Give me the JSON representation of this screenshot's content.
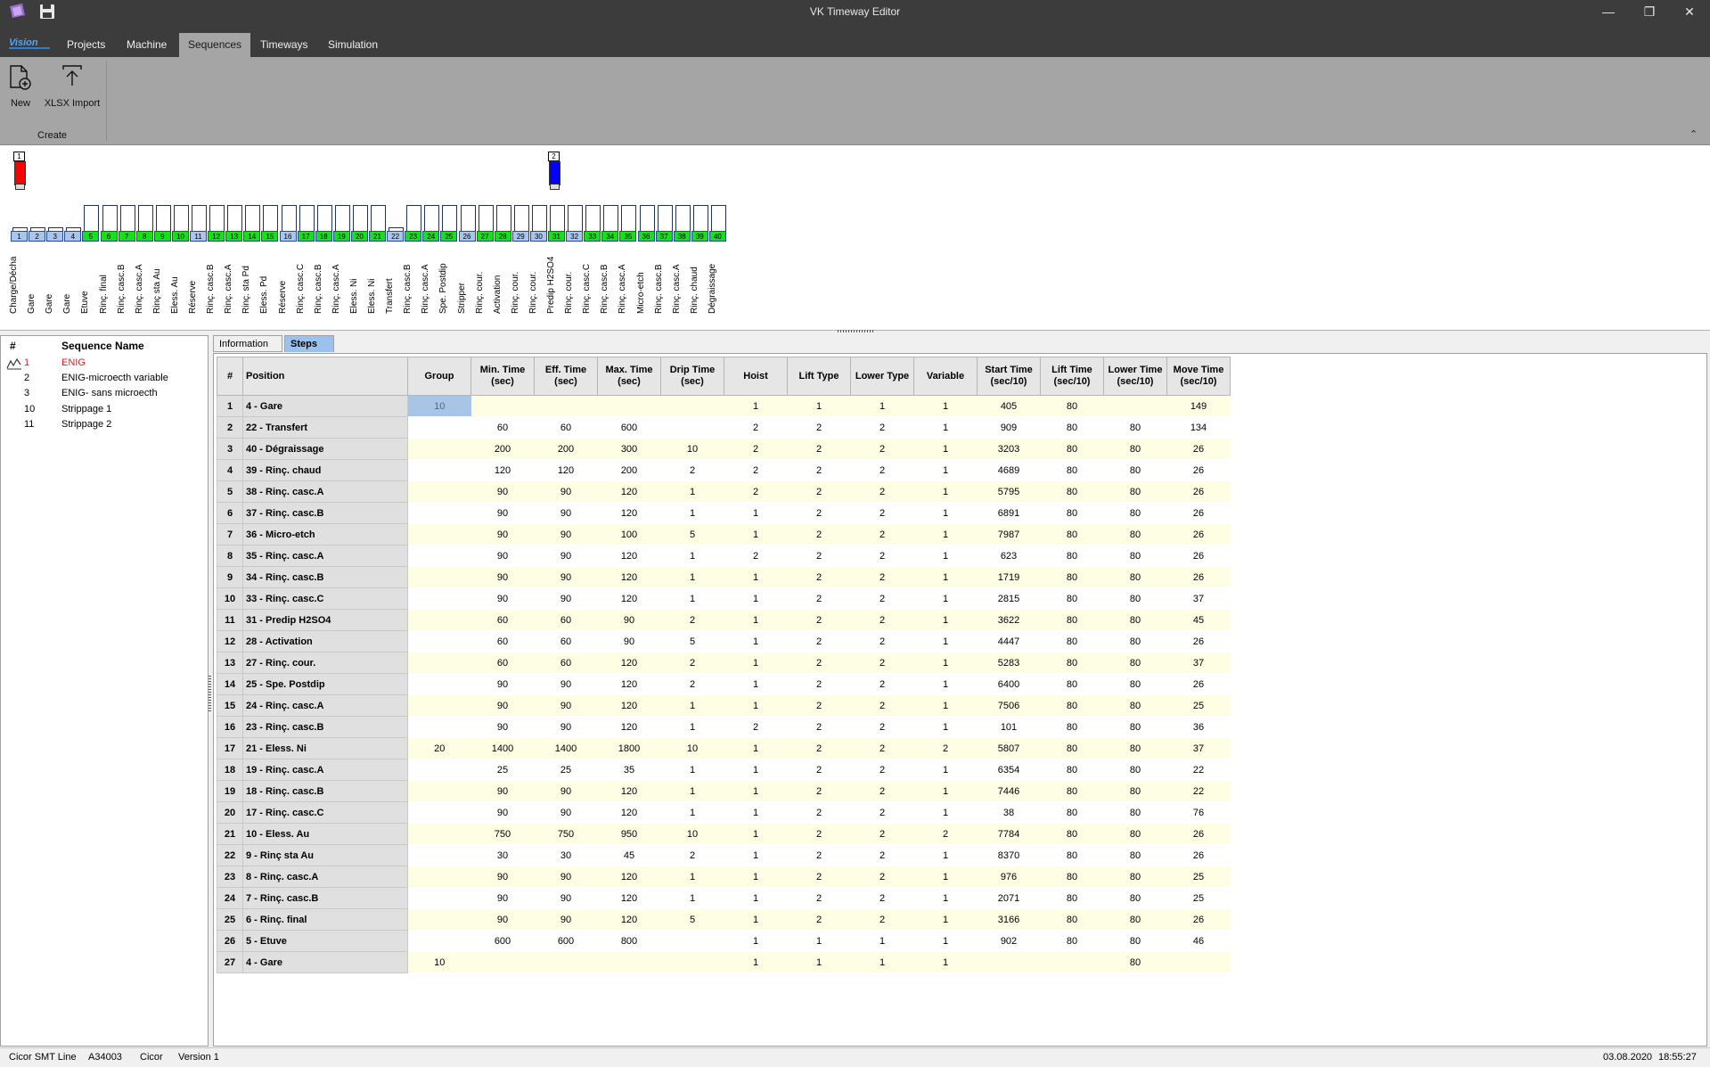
{
  "window": {
    "title": "VK Timeway Editor"
  },
  "menu": {
    "items": [
      "Projects",
      "Machine",
      "Sequences",
      "Timeways",
      "Simulation"
    ],
    "active": "Sequences"
  },
  "ribbon": {
    "new_label": "New",
    "import_label": "XLSX Import",
    "group_label": "Create"
  },
  "hoists": [
    {
      "num": "1",
      "color": "#ff0000"
    },
    {
      "num": "2",
      "color": "#0000ff"
    }
  ],
  "tanks": [
    {
      "num": "1",
      "name": "Charge/Décha",
      "color": "blue",
      "level": "low"
    },
    {
      "num": "2",
      "name": "Gare",
      "color": "blue",
      "level": "low"
    },
    {
      "num": "3",
      "name": "Gare",
      "color": "blue",
      "level": "low"
    },
    {
      "num": "4",
      "name": "Gare",
      "color": "blue",
      "level": "low"
    },
    {
      "num": "5",
      "name": "Etuve",
      "color": "green",
      "level": "high"
    },
    {
      "num": "6",
      "name": "Rinç. final",
      "color": "green",
      "level": "high"
    },
    {
      "num": "7",
      "name": "Rinç. casc.B",
      "color": "green",
      "level": "high"
    },
    {
      "num": "8",
      "name": "Rinç. casc.A",
      "color": "green",
      "level": "high"
    },
    {
      "num": "9",
      "name": "Rinç sta Au",
      "color": "green",
      "level": "high"
    },
    {
      "num": "10",
      "name": "Eless. Au",
      "color": "green",
      "level": "high"
    },
    {
      "num": "11",
      "name": "Réserve",
      "color": "blue",
      "level": "high"
    },
    {
      "num": "12",
      "name": "Rinç. casc.B",
      "color": "green",
      "level": "high"
    },
    {
      "num": "13",
      "name": "Rinç. casc.A",
      "color": "green",
      "level": "high"
    },
    {
      "num": "14",
      "name": "Rinç. sta Pd",
      "color": "green",
      "level": "high"
    },
    {
      "num": "15",
      "name": "Eless. Pd",
      "color": "green",
      "level": "high"
    },
    {
      "num": "16",
      "name": "Réserve",
      "color": "blue",
      "level": "high"
    },
    {
      "num": "17",
      "name": "Rinç. casc.C",
      "color": "green",
      "level": "high"
    },
    {
      "num": "18",
      "name": "Rinç. casc.B",
      "color": "green",
      "level": "high"
    },
    {
      "num": "19",
      "name": "Rinç. casc.A",
      "color": "green",
      "level": "high"
    },
    {
      "num": "20",
      "name": "Eless. Ni",
      "color": "green",
      "level": "high"
    },
    {
      "num": "21",
      "name": "Eless. Ni",
      "color": "green",
      "level": "high"
    },
    {
      "num": "22",
      "name": "Transfert",
      "color": "blue",
      "level": "low"
    },
    {
      "num": "23",
      "name": "Rinç. casc.B",
      "color": "green",
      "level": "high"
    },
    {
      "num": "24",
      "name": "Rinç. casc.A",
      "color": "green",
      "level": "high"
    },
    {
      "num": "25",
      "name": "Spe. Postdip",
      "color": "green",
      "level": "high"
    },
    {
      "num": "26",
      "name": "Stripper",
      "color": "blue",
      "level": "high"
    },
    {
      "num": "27",
      "name": "Rinç. cour.",
      "color": "green",
      "level": "high"
    },
    {
      "num": "28",
      "name": "Activation",
      "color": "green",
      "level": "high"
    },
    {
      "num": "29",
      "name": "Rinç. cour.",
      "color": "blue",
      "level": "high"
    },
    {
      "num": "30",
      "name": "Rinç. cour.",
      "color": "blue",
      "level": "high"
    },
    {
      "num": "31",
      "name": "Predip H2SO4",
      "color": "green",
      "level": "high"
    },
    {
      "num": "32",
      "name": "Rinç. cour.",
      "color": "blue",
      "level": "high"
    },
    {
      "num": "33",
      "name": "Rinç. casc.C",
      "color": "green",
      "level": "high"
    },
    {
      "num": "34",
      "name": "Rinç. casc.B",
      "color": "green",
      "level": "high"
    },
    {
      "num": "35",
      "name": "Rinç. casc.A",
      "color": "green",
      "level": "high"
    },
    {
      "num": "36",
      "name": "Micro-etch",
      "color": "green",
      "level": "high"
    },
    {
      "num": "37",
      "name": "Rinç. casc.B",
      "color": "green",
      "level": "high"
    },
    {
      "num": "38",
      "name": "Rinç. casc.A",
      "color": "green",
      "level": "high"
    },
    {
      "num": "39",
      "name": "Rinç. chaud",
      "color": "green",
      "level": "high"
    },
    {
      "num": "40",
      "name": "Dégraissage",
      "color": "green",
      "level": "high"
    }
  ],
  "sequences": {
    "headers": [
      "#",
      "Sequence Name"
    ],
    "rows": [
      {
        "num": "1",
        "name": "ENIG",
        "selected": true
      },
      {
        "num": "2",
        "name": "ENIG-microecth variable"
      },
      {
        "num": "3",
        "name": "ENIG- sans microecth"
      },
      {
        "num": "10",
        "name": "Strippage 1"
      },
      {
        "num": "11",
        "name": "Strippage 2"
      }
    ]
  },
  "tabs": [
    "Information",
    "Steps"
  ],
  "active_tab": "Steps",
  "steps": {
    "headers": [
      "#",
      "Position",
      "Group",
      "Min. Time\n(sec)",
      "Eff. Time\n(sec)",
      "Max. Time\n(sec)",
      "Drip Time\n(sec)",
      "Hoist",
      "Lift Type",
      "Lower Type",
      "Variable",
      "Start Time\n(sec/10)",
      "Lift Time\n(sec/10)",
      "Lower Time\n(sec/10)",
      "Move Time\n(sec/10)"
    ],
    "rows": [
      [
        "1",
        "4 - Gare",
        "10",
        "",
        "",
        "",
        "",
        "1",
        "1",
        "1",
        "1",
        "405",
        "80",
        "",
        "149"
      ],
      [
        "2",
        "22 - Transfert",
        "",
        "60",
        "60",
        "600",
        "",
        "2",
        "2",
        "2",
        "1",
        "909",
        "80",
        "80",
        "134"
      ],
      [
        "3",
        "40 - Dégraissage",
        "",
        "200",
        "200",
        "300",
        "10",
        "2",
        "2",
        "2",
        "1",
        "3203",
        "80",
        "80",
        "26"
      ],
      [
        "4",
        "39 - Rinç. chaud",
        "",
        "120",
        "120",
        "200",
        "2",
        "2",
        "2",
        "2",
        "1",
        "4689",
        "80",
        "80",
        "26"
      ],
      [
        "5",
        "38 - Rinç. casc.A",
        "",
        "90",
        "90",
        "120",
        "1",
        "2",
        "2",
        "2",
        "1",
        "5795",
        "80",
        "80",
        "26"
      ],
      [
        "6",
        "37 - Rinç. casc.B",
        "",
        "90",
        "90",
        "120",
        "1",
        "1",
        "2",
        "2",
        "1",
        "6891",
        "80",
        "80",
        "26"
      ],
      [
        "7",
        "36 - Micro-etch",
        "",
        "90",
        "90",
        "100",
        "5",
        "1",
        "2",
        "2",
        "1",
        "7987",
        "80",
        "80",
        "26"
      ],
      [
        "8",
        "35 - Rinç. casc.A",
        "",
        "90",
        "90",
        "120",
        "1",
        "2",
        "2",
        "2",
        "1",
        "623",
        "80",
        "80",
        "26"
      ],
      [
        "9",
        "34 - Rinç. casc.B",
        "",
        "90",
        "90",
        "120",
        "1",
        "1",
        "2",
        "2",
        "1",
        "1719",
        "80",
        "80",
        "26"
      ],
      [
        "10",
        "33 - Rinç. casc.C",
        "",
        "90",
        "90",
        "120",
        "1",
        "1",
        "2",
        "2",
        "1",
        "2815",
        "80",
        "80",
        "37"
      ],
      [
        "11",
        "31 - Predip H2SO4",
        "",
        "60",
        "60",
        "90",
        "2",
        "1",
        "2",
        "2",
        "1",
        "3622",
        "80",
        "80",
        "45"
      ],
      [
        "12",
        "28 - Activation",
        "",
        "60",
        "60",
        "90",
        "5",
        "1",
        "2",
        "2",
        "1",
        "4447",
        "80",
        "80",
        "26"
      ],
      [
        "13",
        "27 - Rinç. cour.",
        "",
        "60",
        "60",
        "120",
        "2",
        "1",
        "2",
        "2",
        "1",
        "5283",
        "80",
        "80",
        "37"
      ],
      [
        "14",
        "25 - Spe. Postdip",
        "",
        "90",
        "90",
        "120",
        "2",
        "1",
        "2",
        "2",
        "1",
        "6400",
        "80",
        "80",
        "26"
      ],
      [
        "15",
        "24 - Rinç. casc.A",
        "",
        "90",
        "90",
        "120",
        "1",
        "1",
        "2",
        "2",
        "1",
        "7506",
        "80",
        "80",
        "25"
      ],
      [
        "16",
        "23 - Rinç. casc.B",
        "",
        "90",
        "90",
        "120",
        "1",
        "2",
        "2",
        "2",
        "1",
        "101",
        "80",
        "80",
        "36"
      ],
      [
        "17",
        "21 - Eless. Ni",
        "20",
        "1400",
        "1400",
        "1800",
        "10",
        "1",
        "2",
        "2",
        "2",
        "5807",
        "80",
        "80",
        "37"
      ],
      [
        "18",
        "19 - Rinç. casc.A",
        "",
        "25",
        "25",
        "35",
        "1",
        "1",
        "2",
        "2",
        "1",
        "6354",
        "80",
        "80",
        "22"
      ],
      [
        "19",
        "18 - Rinç. casc.B",
        "",
        "90",
        "90",
        "120",
        "1",
        "1",
        "2",
        "2",
        "1",
        "7446",
        "80",
        "80",
        "22"
      ],
      [
        "20",
        "17 - Rinç. casc.C",
        "",
        "90",
        "90",
        "120",
        "1",
        "1",
        "2",
        "2",
        "1",
        "38",
        "80",
        "80",
        "76"
      ],
      [
        "21",
        "10 - Eless. Au",
        "",
        "750",
        "750",
        "950",
        "10",
        "1",
        "2",
        "2",
        "2",
        "7784",
        "80",
        "80",
        "26"
      ],
      [
        "22",
        "9 - Rinç sta Au",
        "",
        "30",
        "30",
        "45",
        "2",
        "1",
        "2",
        "2",
        "1",
        "8370",
        "80",
        "80",
        "26"
      ],
      [
        "23",
        "8 - Rinç. casc.A",
        "",
        "90",
        "90",
        "120",
        "1",
        "1",
        "2",
        "2",
        "1",
        "976",
        "80",
        "80",
        "25"
      ],
      [
        "24",
        "7 - Rinç. casc.B",
        "",
        "90",
        "90",
        "120",
        "1",
        "1",
        "2",
        "2",
        "1",
        "2071",
        "80",
        "80",
        "25"
      ],
      [
        "25",
        "6 - Rinç. final",
        "",
        "90",
        "90",
        "120",
        "5",
        "1",
        "2",
        "2",
        "1",
        "3166",
        "80",
        "80",
        "26"
      ],
      [
        "26",
        "5 - Etuve",
        "",
        "600",
        "600",
        "800",
        "",
        "1",
        "1",
        "1",
        "1",
        "902",
        "80",
        "80",
        "46"
      ],
      [
        "27",
        "4 - Gare",
        "10",
        "",
        "",
        "",
        "",
        "1",
        "1",
        "1",
        "1",
        "",
        "",
        "80",
        ""
      ]
    ]
  },
  "status": {
    "line": "Cicor SMT Line",
    "code": "A34003",
    "company": "Cicor",
    "version": "Version 1",
    "date": "03.08.2020",
    "time": "18:55:27"
  },
  "colors": {
    "titlebar": "#3c3c3c",
    "ribbon": "#a5a5a5",
    "tab_active": "#9bc2ee",
    "row_odd": "#fefee5",
    "tank_green": "#18e018",
    "tank_blue": "#a9c5ec"
  }
}
